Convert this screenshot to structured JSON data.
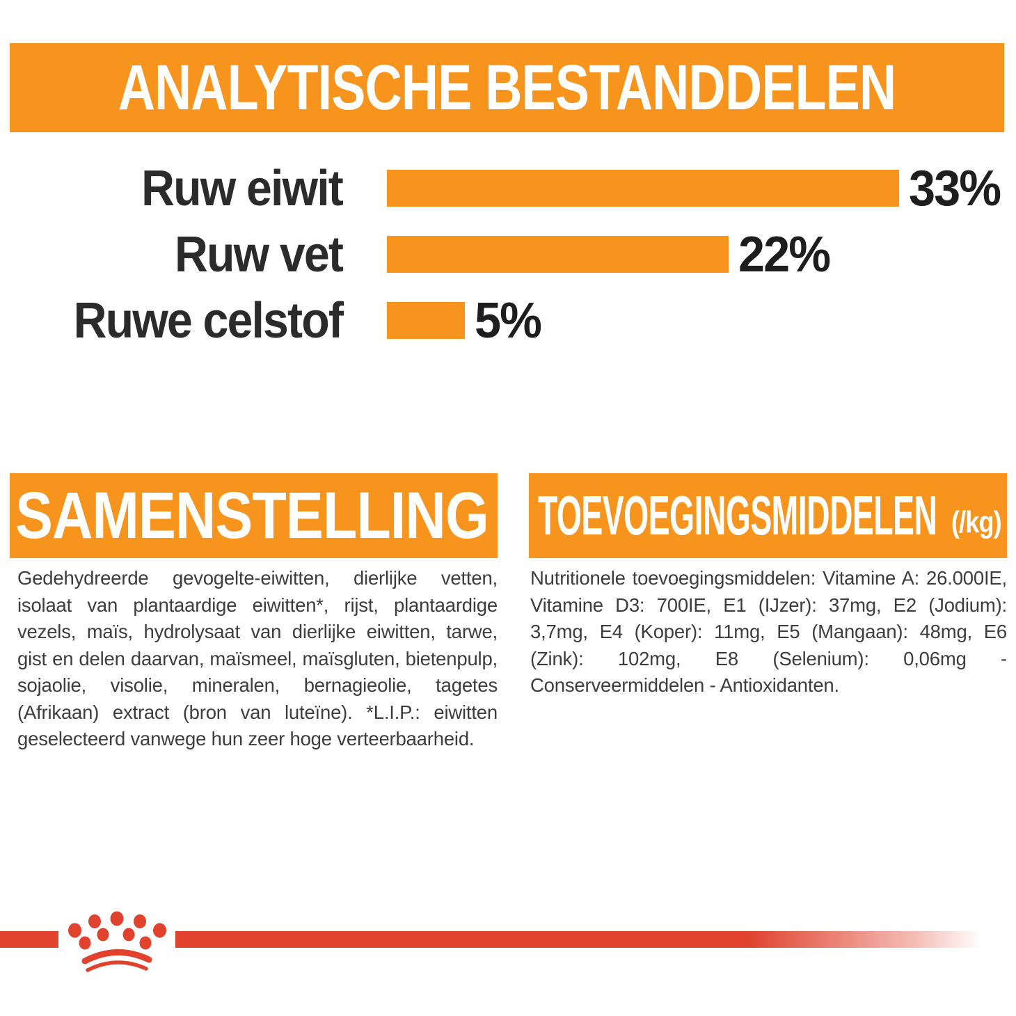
{
  "header": {
    "title": "ANALYTISCHE BESTANDDELEN"
  },
  "chart_data": {
    "type": "bar",
    "orientation": "horizontal",
    "title": "ANALYTISCHE BESTANDDELEN",
    "categories": [
      "Ruw eiwit",
      "Ruw vet",
      "Ruwe celstof"
    ],
    "values": [
      33,
      22,
      5
    ],
    "value_labels": [
      "33%",
      "22%",
      "5%"
    ],
    "unit": "%",
    "xlim": [
      0,
      35
    ],
    "bar_color": "#F7941E",
    "grid": false,
    "legend": false
  },
  "sections": {
    "composition": {
      "title": "SAMENSTELLING",
      "body": "Gedehydreerde gevogelte-eiwitten, dierlijke vetten, isolaat van plantaardige eiwitten*, rijst, plantaardige vezels, maïs, hydrolysaat van dierlijke eiwitten, tarwe, gist en delen daarvan, maïsmeel, maïsgluten, bietenpulp, sojaolie, visolie, mineralen, bernagieolie, tagetes (Afrikaan) extract (bron van luteïne). *L.I.P.: eiwitten geselecteerd vanwege hun zeer hoge verteerbaarheid."
    },
    "additives": {
      "title": "TOEVOEGINGSMIDDELEN",
      "unit_suffix": "(/kg)",
      "body": "Nutritionele toevoegingsmiddelen: Vitamine A: 26.000IE, Vitamine D3: 700IE, E1 (IJzer): 37mg, E2 (Jodium): 3,7mg, E4 (Koper): 11mg, E5 (Mangaan): 48mg, E6 (Zink): 102mg, E8 (Selenium): 0,06mg - Conserveermiddelen - Antioxidanten."
    }
  },
  "footer": {
    "brand_logo": "royal-canin-crown"
  },
  "colors": {
    "orange": "#F7941E",
    "red": "#E0422E",
    "text_dark": "#2B2B2B",
    "body_text": "#3D3D3D"
  }
}
